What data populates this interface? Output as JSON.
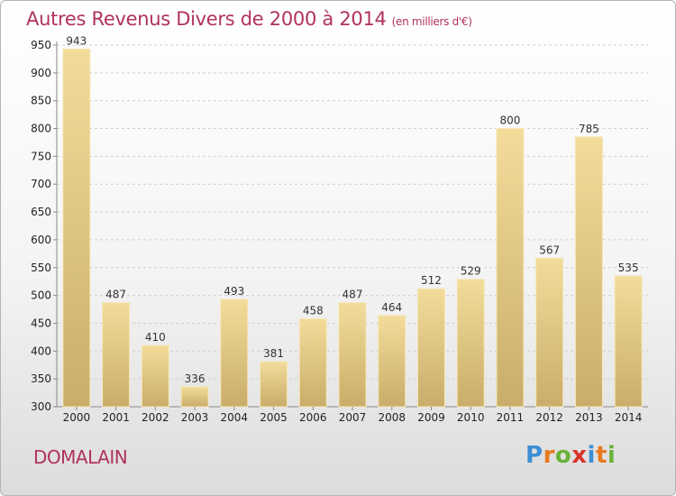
{
  "title": "Autres Revenus Divers de 2000 à 2014",
  "title_unit": "(en milliers d'€)",
  "place": "DOMALAIN",
  "logo": {
    "letters": [
      "P",
      "r",
      "o",
      "x",
      "i",
      "t",
      "i"
    ],
    "colors": [
      "#3c8fd4",
      "#e87a1e",
      "#6ab33a",
      "#d9332b",
      "#3c8fd4",
      "#e87a1e",
      "#6ab33a"
    ]
  },
  "colors": {
    "bar_light": "#f3dc9a",
    "bar_dark": "#c9ad6a",
    "grid": "#cfcfcf",
    "title": "#b0325d"
  },
  "chart_data": {
    "type": "bar",
    "title": "Autres Revenus Divers de 2000 à 2014",
    "subtitle": "(en milliers d'€)",
    "xlabel": "",
    "ylabel": "",
    "ylim": [
      300,
      950
    ],
    "yticks": [
      300,
      350,
      400,
      450,
      500,
      550,
      600,
      650,
      700,
      750,
      800,
      850,
      900,
      950
    ],
    "grid": true,
    "categories": [
      "2000",
      "2001",
      "2002",
      "2003",
      "2004",
      "2005",
      "2006",
      "2007",
      "2008",
      "2009",
      "2010",
      "2011",
      "2012",
      "2013",
      "2014"
    ],
    "values": [
      943,
      487,
      410,
      336,
      493,
      381,
      458,
      487,
      464,
      512,
      529,
      800,
      567,
      785,
      535
    ]
  }
}
